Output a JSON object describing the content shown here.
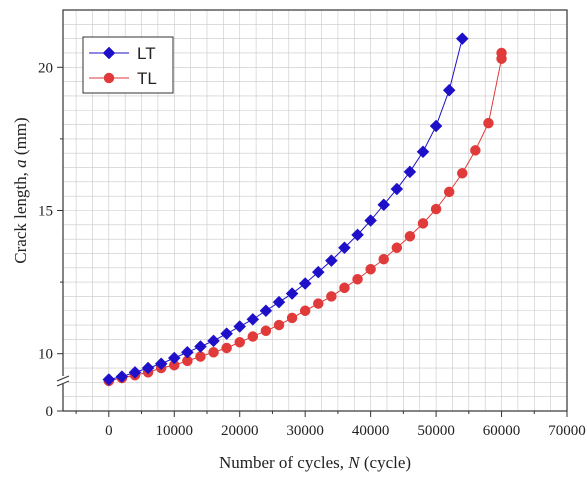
{
  "chart_data": {
    "type": "scatter",
    "xlabel": "Number of cycles, ",
    "xlabel_italic": "N",
    "xlabel_unit": " (cycle)",
    "ylabel": "Crack length, ",
    "ylabel_italic": "a",
    "ylabel_unit": " (mm)",
    "xlim": [
      -7000,
      70000
    ],
    "ylim": [
      8.0,
      22.0
    ],
    "y_axis_break": true,
    "x_ticks": [
      0,
      10000,
      20000,
      30000,
      40000,
      50000,
      60000,
      70000
    ],
    "y_tick_labels": [
      "0",
      "10",
      "15",
      "20"
    ],
    "grid": true,
    "legend_position": "top-left",
    "series": [
      {
        "name": "LT",
        "color": "#1e10c8",
        "marker": "diamond",
        "x": [
          0,
          2000,
          4000,
          6000,
          8000,
          10000,
          12000,
          14000,
          16000,
          18000,
          20000,
          22000,
          24000,
          26000,
          28000,
          30000,
          32000,
          34000,
          36000,
          38000,
          40000,
          42000,
          44000,
          46000,
          48000,
          50000,
          52000,
          54000
        ],
        "y": [
          9.1,
          9.2,
          9.35,
          9.5,
          9.65,
          9.85,
          10.05,
          10.25,
          10.45,
          10.7,
          10.95,
          11.2,
          11.5,
          11.8,
          12.1,
          12.45,
          12.85,
          13.25,
          13.7,
          14.15,
          14.65,
          15.2,
          15.75,
          16.35,
          17.05,
          17.95,
          19.2,
          21.0
        ]
      },
      {
        "name": "TL",
        "color": "#e03a3a",
        "marker": "circle",
        "x": [
          0,
          2000,
          4000,
          6000,
          8000,
          10000,
          12000,
          14000,
          16000,
          18000,
          20000,
          22000,
          24000,
          26000,
          28000,
          30000,
          32000,
          34000,
          36000,
          38000,
          40000,
          42000,
          44000,
          46000,
          48000,
          50000,
          52000,
          54000,
          56000,
          58000,
          60000,
          60000
        ],
        "y": [
          9.05,
          9.15,
          9.25,
          9.35,
          9.5,
          9.6,
          9.75,
          9.9,
          10.05,
          10.2,
          10.4,
          10.6,
          10.8,
          11.0,
          11.25,
          11.5,
          11.75,
          12.0,
          12.3,
          12.6,
          12.95,
          13.3,
          13.7,
          14.1,
          14.55,
          15.05,
          15.65,
          16.3,
          17.1,
          18.05,
          20.3,
          20.5
        ]
      }
    ]
  }
}
